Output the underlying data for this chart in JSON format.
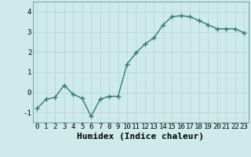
{
  "x": [
    0,
    1,
    2,
    3,
    4,
    5,
    6,
    7,
    8,
    9,
    10,
    11,
    12,
    13,
    14,
    15,
    16,
    17,
    18,
    19,
    20,
    21,
    22,
    23
  ],
  "y": [
    -0.8,
    -0.35,
    -0.25,
    0.35,
    -0.1,
    -0.3,
    -1.2,
    -0.35,
    -0.2,
    -0.2,
    1.4,
    1.95,
    2.4,
    2.7,
    3.35,
    3.75,
    3.8,
    3.75,
    3.55,
    3.35,
    3.15,
    3.15,
    3.15,
    2.95
  ],
  "line_color": "#2e7d6e",
  "bg_color": "#ceeaea",
  "grid_color": "#b8d8d8",
  "xlabel": "Humidex (Indice chaleur)",
  "ylim": [
    -1.5,
    4.5
  ],
  "xlim": [
    -0.5,
    23.5
  ],
  "yticks": [
    -1,
    0,
    1,
    2,
    3,
    4
  ],
  "xticks": [
    0,
    1,
    2,
    3,
    4,
    5,
    6,
    7,
    8,
    9,
    10,
    11,
    12,
    13,
    14,
    15,
    16,
    17,
    18,
    19,
    20,
    21,
    22,
    23
  ],
  "marker_size": 2.5,
  "line_width": 1.0,
  "xlabel_fontsize": 8,
  "tick_fontsize": 6.5
}
